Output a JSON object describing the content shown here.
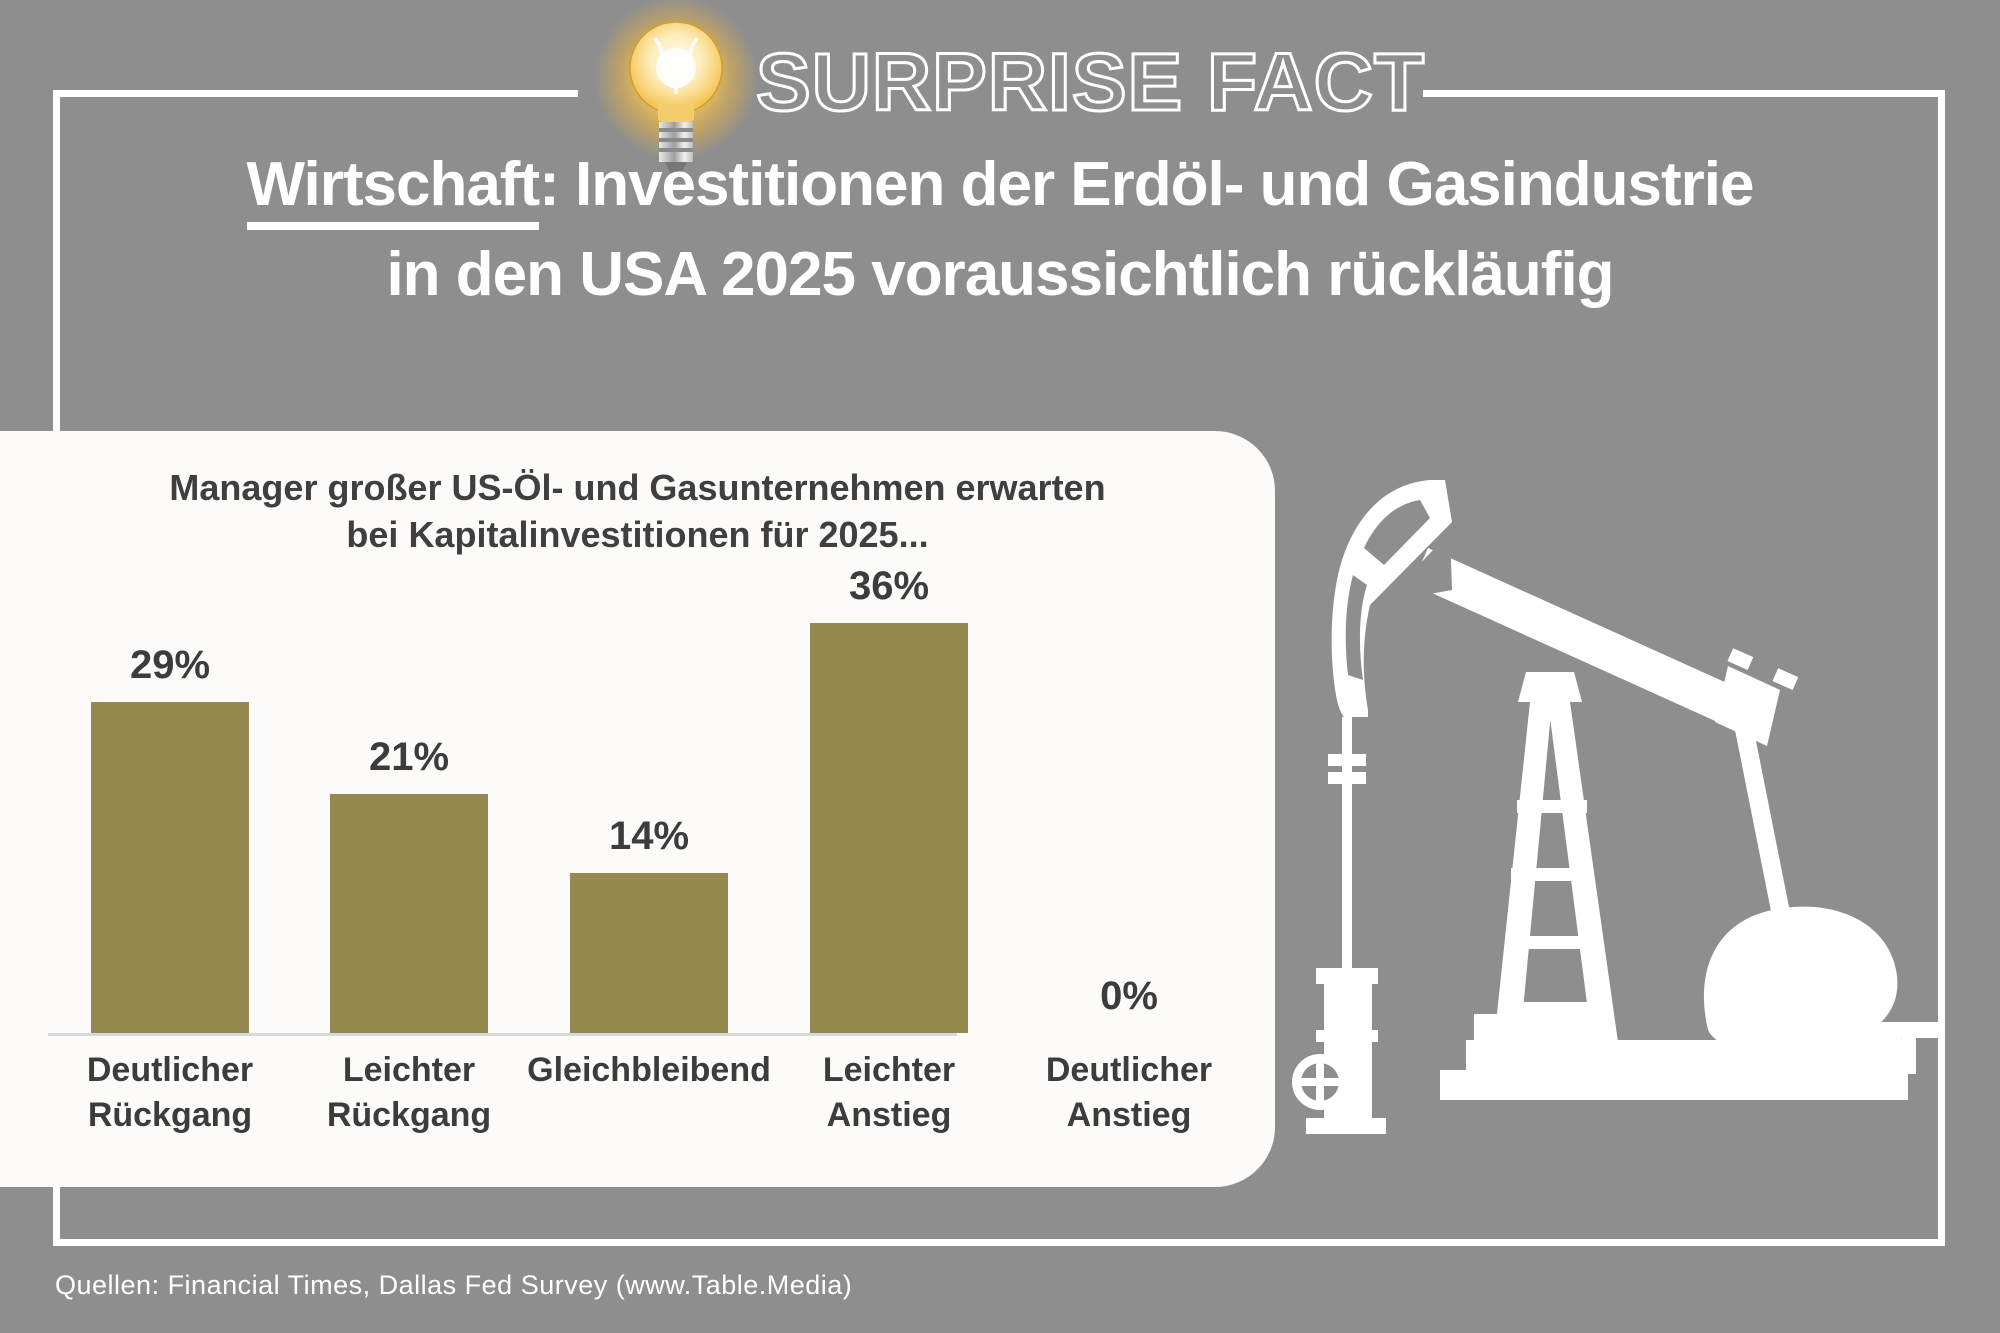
{
  "header": {
    "badge": "SURPRISE FACT"
  },
  "title": {
    "underlined_word": "Wirtschaft",
    "line1_rest": ": Investitionen der Erdöl- und Gasindustrie",
    "line2": "in den USA 2025 voraussichtlich rückläufig"
  },
  "chart_data": {
    "type": "bar",
    "title": "Manager großer US-Öl- und Gasunternehmen erwarten bei Kapitalinvestitionen für 2025...",
    "title_line1": "Manager großer US-Öl- und Gasunternehmen erwarten",
    "title_line2": "bei Kapitalinvestitionen für 2025...",
    "categories": [
      "Deutlicher Rückgang",
      "Leichter Rückgang",
      "Gleichbleibend",
      "Leichter Anstieg",
      "Deutlicher Anstieg"
    ],
    "category_lines": [
      [
        "Deutlicher",
        "Rückgang"
      ],
      [
        "Leichter",
        "Rückgang"
      ],
      [
        "Gleichbleibend"
      ],
      [
        "Leichter",
        "Anstieg"
      ],
      [
        "Deutlicher",
        "Anstieg"
      ]
    ],
    "values": [
      29,
      21,
      14,
      36,
      0
    ],
    "value_labels": [
      "29%",
      "21%",
      "14%",
      "36%",
      "0%"
    ],
    "unit": "%",
    "ylim": [
      0,
      38
    ],
    "grid": false,
    "legend": "none",
    "bar_color": "#96894f",
    "value_label_color": "#3c3c3c",
    "category_label_color": "#3c3c3c",
    "axis_line_color": "#d9d9d9"
  },
  "icons": {
    "lightbulb": "lightbulb-icon",
    "pumpjack": "oil-pumpjack-icon"
  },
  "colors": {
    "background": "#8e8e8e",
    "frame": "#ffffff",
    "card": "#fcfbfa",
    "title_text": "#ffffff",
    "bulb_glow": "#f3b843",
    "pumpjack": "#ffffff"
  },
  "footer": {
    "source": "Quellen: Financial Times, Dallas Fed Survey (www.Table.Media)"
  }
}
